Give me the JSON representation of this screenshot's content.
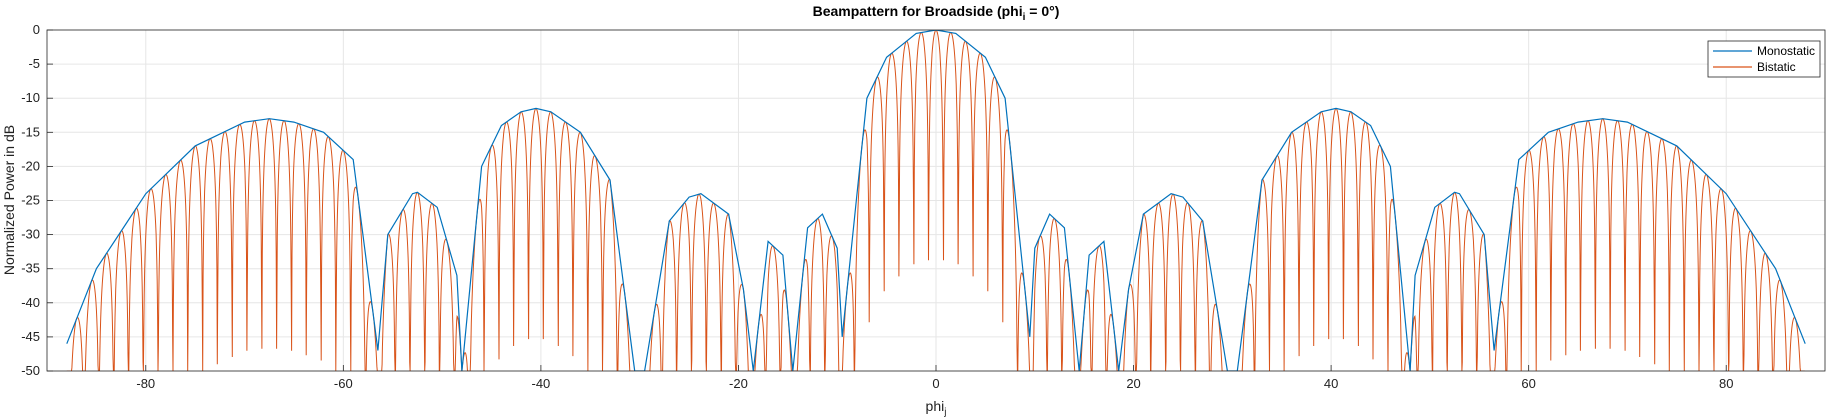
{
  "chart_data": {
    "type": "line",
    "title_main": "Beampattern for Broadside (phi",
    "title_sub": "i",
    "title_tail": " = 0°)",
    "xlabel_main": "phi",
    "xlabel_sub": "j",
    "ylabel": "Normalized Power in dB",
    "xlim": [
      -90,
      90
    ],
    "ylim": [
      -50,
      0
    ],
    "xticks": [
      -80,
      -60,
      -40,
      -20,
      0,
      20,
      40,
      60,
      80
    ],
    "xtick_labels": [
      "-80",
      "-60",
      "-40",
      "-20",
      "0",
      "20",
      "40",
      "60",
      "80"
    ],
    "yticks": [
      0,
      -5,
      -10,
      -15,
      -20,
      -25,
      -30,
      -35,
      -40,
      -45,
      -50
    ],
    "ytick_labels": [
      "0",
      "-5",
      "-10",
      "-15",
      "-20",
      "-25",
      "-30",
      "-35",
      "-40",
      "-45",
      "-50"
    ],
    "grid": true,
    "legend_position": "top-right",
    "series": [
      {
        "name": "Monostatic",
        "color": "#0072BD",
        "x": [
          -88,
          -85,
          -80,
          -75,
          -70,
          -67.5,
          -65,
          -62,
          -59,
          -56.5,
          -55.5,
          -53,
          -52.5,
          -50.5,
          -48.5,
          -48,
          -46,
          -44,
          -42,
          -40.5,
          -39,
          -36,
          -33,
          -30.5,
          -29.5,
          -27,
          -25,
          -23.8,
          -21,
          -19.5,
          -18.5,
          -17,
          -15.5,
          -14.5,
          -13,
          -11.5,
          -10,
          -9.5,
          -7,
          -5,
          -2,
          0,
          2,
          5,
          7,
          9.5,
          10,
          11.5,
          13,
          14.5,
          15.5,
          17,
          18.5,
          19.5,
          21,
          23.8,
          25,
          27,
          29.5,
          30.5,
          33,
          36,
          39,
          40.5,
          42,
          44,
          46,
          48,
          48.5,
          50.5,
          52.5,
          53,
          55.5,
          56.5,
          59,
          62,
          65,
          67.5,
          70,
          75,
          80,
          85,
          88
        ],
        "values": [
          -46,
          -35,
          -24,
          -17,
          -13.5,
          -13,
          -13.5,
          -15,
          -19,
          -47,
          -30,
          -24,
          -23.8,
          -26,
          -36,
          -50,
          -20,
          -14,
          -12,
          -11.5,
          -12,
          -15,
          -22,
          -50,
          -50,
          -28,
          -24.5,
          -24,
          -27,
          -38,
          -50,
          -31,
          -33,
          -50,
          -29,
          -27,
          -32,
          -45,
          -10,
          -4,
          -0.5,
          0,
          -0.5,
          -4,
          -10,
          -45,
          -32,
          -27,
          -29,
          -50,
          -33,
          -31,
          -50,
          -38,
          -27,
          -24,
          -24.5,
          -28,
          -50,
          -50,
          -22,
          -15,
          -12,
          -11.5,
          -12,
          -14,
          -20,
          -50,
          -36,
          -26,
          -23.8,
          -24,
          -30,
          -47,
          -19,
          -15,
          -13.5,
          -13,
          -13.5,
          -17,
          -24,
          -35,
          -46
        ]
      },
      {
        "name": "Bistatic",
        "color": "#D95319",
        "values": "rapidly oscillating copy of the Monostatic envelope, nulls reaching -50 dB"
      }
    ]
  }
}
